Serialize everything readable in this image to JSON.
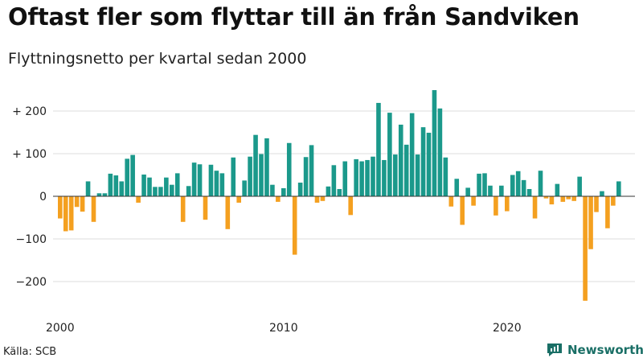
{
  "title": "Oftast fler som flyttar till än från Sandviken",
  "subtitle": "Flyttningsnetto per kvartal sedan 2000",
  "source": "Källa: SCB",
  "brand": "Newsworthy",
  "colors": {
    "positive": "#1b998b",
    "negative": "#f4a020",
    "grid": "#dddddd",
    "axis": "#333333"
  },
  "chart_data": {
    "type": "bar",
    "title": "Oftast fler som flyttar till än från Sandviken",
    "subtitle": "Flyttningsnetto per kvartal sedan 2000",
    "ylim": [
      -260,
      260
    ],
    "yticks": [
      {
        "value": 200,
        "label": "+ 200"
      },
      {
        "value": 100,
        "label": "+ 100"
      },
      {
        "value": 0,
        "label": "0"
      },
      {
        "value": -100,
        "label": "−100"
      },
      {
        "value": -200,
        "label": "−200"
      }
    ],
    "xticks": [
      {
        "year": 2000,
        "label": "2000"
      },
      {
        "year": 2010,
        "label": "2010"
      },
      {
        "year": 2020,
        "label": "2020"
      }
    ],
    "start_year": 2000,
    "grid": true,
    "values": [
      -52,
      -82,
      -80,
      -25,
      -36,
      35,
      -60,
      7,
      7,
      53,
      49,
      35,
      88,
      97,
      -15,
      51,
      44,
      22,
      22,
      44,
      27,
      54,
      -60,
      24,
      79,
      75,
      -55,
      74,
      60,
      54,
      -77,
      91,
      -15,
      37,
      93,
      144,
      99,
      136,
      27,
      -13,
      19,
      125,
      -137,
      32,
      92,
      120,
      -15,
      -11,
      23,
      73,
      17,
      82,
      -44,
      87,
      82,
      85,
      93,
      219,
      85,
      196,
      98,
      168,
      121,
      195,
      98,
      162,
      149,
      249,
      206,
      91,
      -24,
      41,
      -67,
      20,
      -22,
      53,
      54,
      25,
      -45,
      25,
      -35,
      50,
      59,
      38,
      17,
      -52,
      60,
      -5,
      -19,
      29,
      -13,
      -7,
      -11,
      46,
      -245,
      -124,
      -37,
      12,
      -75,
      -22,
      35
    ]
  }
}
